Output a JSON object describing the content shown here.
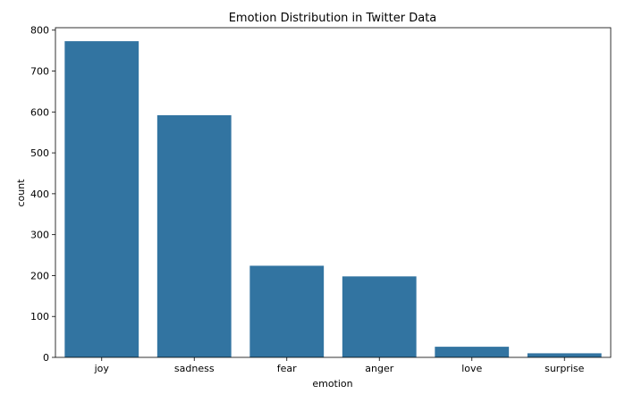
{
  "chart_data": {
    "type": "bar",
    "title": "Emotion Distribution in Twitter Data",
    "xlabel": "emotion",
    "ylabel": "count",
    "categories": [
      "joy",
      "sadness",
      "fear",
      "anger",
      "love",
      "surprise"
    ],
    "values": [
      773,
      592,
      224,
      198,
      26,
      10
    ],
    "ylim": [
      0,
      806
    ],
    "yticks": [
      0,
      100,
      200,
      300,
      400,
      500,
      600,
      700,
      800
    ],
    "bar_color": "#3274a1",
    "grid": false,
    "legend": "none"
  }
}
